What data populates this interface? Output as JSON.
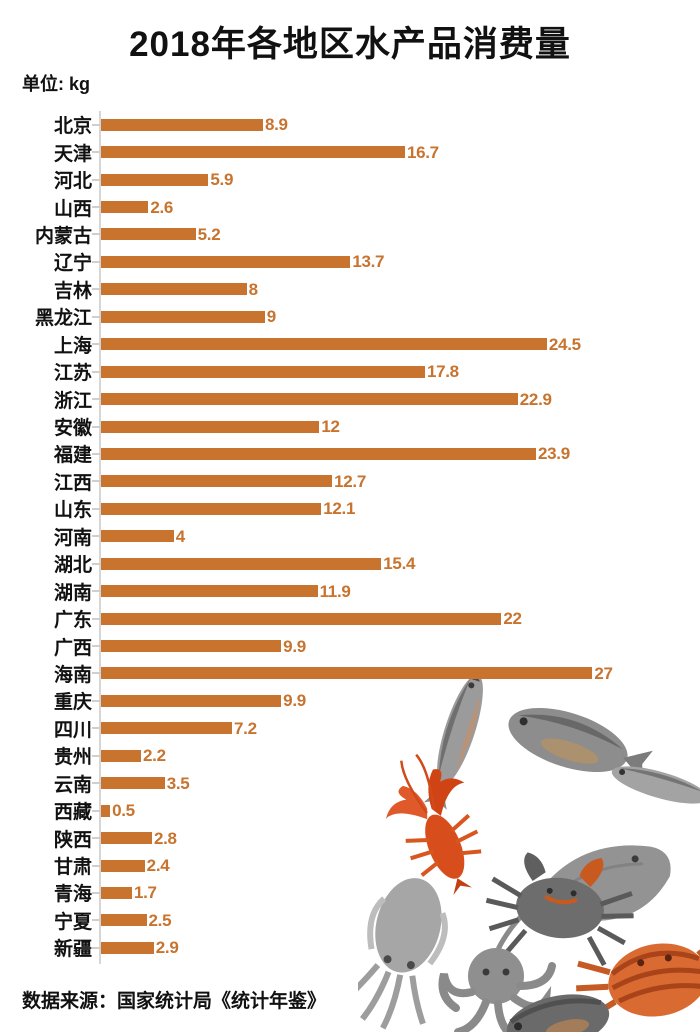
{
  "page": {
    "title": "2018年各地区水产品消费量",
    "unit_label": "单位: kg",
    "source": "数据来源：国家统计局《统计年鉴》"
  },
  "chart_data": {
    "type": "bar",
    "orientation": "horizontal",
    "title": "2018年各地区水产品消费量",
    "unit": "kg",
    "categories": [
      "北京",
      "天津",
      "河北",
      "山西",
      "内蒙古",
      "辽宁",
      "吉林",
      "黑龙江",
      "上海",
      "江苏",
      "浙江",
      "安徽",
      "福建",
      "江西",
      "山东",
      "河南",
      "湖北",
      "湖南",
      "广东",
      "广西",
      "海南",
      "重庆",
      "四川",
      "贵州",
      "云南",
      "西藏",
      "陕西",
      "甘肃",
      "青海",
      "宁夏",
      "新疆"
    ],
    "values": [
      8.9,
      16.7,
      5.9,
      2.6,
      5.2,
      13.7,
      8,
      9,
      24.5,
      17.8,
      22.9,
      12,
      23.9,
      12.7,
      12.1,
      4,
      15.4,
      11.9,
      22,
      9.9,
      27,
      9.9,
      7.2,
      2.2,
      3.5,
      0.5,
      2.8,
      2.4,
      1.7,
      2.5,
      2.9
    ],
    "xlim": [
      0,
      27
    ],
    "grid": false,
    "legend": "none",
    "bar_color": "#c8732e",
    "value_label_color": "#c8732e",
    "axis_line_color": "#d6d6d6",
    "source": "数据来源：国家统计局《统计年鉴》"
  },
  "illustration": {
    "name": "seafood-collage",
    "items": [
      "fish",
      "bream-fish",
      "slender-fish",
      "ray-fish",
      "crayfish",
      "dark-crab",
      "orange-crab",
      "cuttlefish",
      "octopus"
    ]
  }
}
